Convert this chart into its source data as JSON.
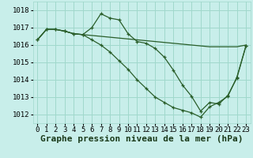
{
  "title": "Graphe pression niveau de la mer (hPa)",
  "background_color": "#c8eeea",
  "grid_color": "#a0d8cc",
  "line_color": "#2a5e2a",
  "x_ticks": [
    0,
    1,
    2,
    3,
    4,
    5,
    6,
    7,
    8,
    9,
    10,
    11,
    12,
    13,
    14,
    15,
    16,
    17,
    18,
    19,
    20,
    21,
    22,
    23
  ],
  "ylim": [
    1011.5,
    1018.5
  ],
  "yticks": [
    1012,
    1013,
    1014,
    1015,
    1016,
    1017,
    1018
  ],
  "series": [
    [
      1016.3,
      1016.9,
      1016.9,
      1016.8,
      1016.65,
      1016.6,
      1017.0,
      1017.8,
      1017.55,
      1017.45,
      1016.65,
      1016.2,
      1016.1,
      1015.8,
      1015.3,
      1014.55,
      1013.7,
      1013.05,
      1012.2,
      1012.7,
      1012.6,
      1013.1,
      1014.1,
      1015.95
    ],
    [
      1016.3,
      1016.9,
      1016.9,
      1016.8,
      1016.65,
      1016.6,
      1016.55,
      1016.5,
      1016.45,
      1016.4,
      1016.35,
      1016.3,
      1016.25,
      1016.2,
      1016.15,
      1016.1,
      1016.05,
      1016.0,
      1015.95,
      1015.9,
      1015.9,
      1015.9,
      1015.9,
      1016.0
    ],
    [
      1016.3,
      1016.9,
      1016.9,
      1016.8,
      1016.65,
      1016.6,
      1016.3,
      1016.0,
      1015.6,
      1015.1,
      1014.6,
      1014.0,
      1013.5,
      1013.0,
      1012.7,
      1012.4,
      1012.25,
      1012.1,
      1011.85,
      1012.45,
      1012.7,
      1013.05,
      1014.15,
      1015.95
    ]
  ],
  "title_fontsize": 8,
  "tick_fontsize": 6.5,
  "ylabel_fontsize": 6.5
}
